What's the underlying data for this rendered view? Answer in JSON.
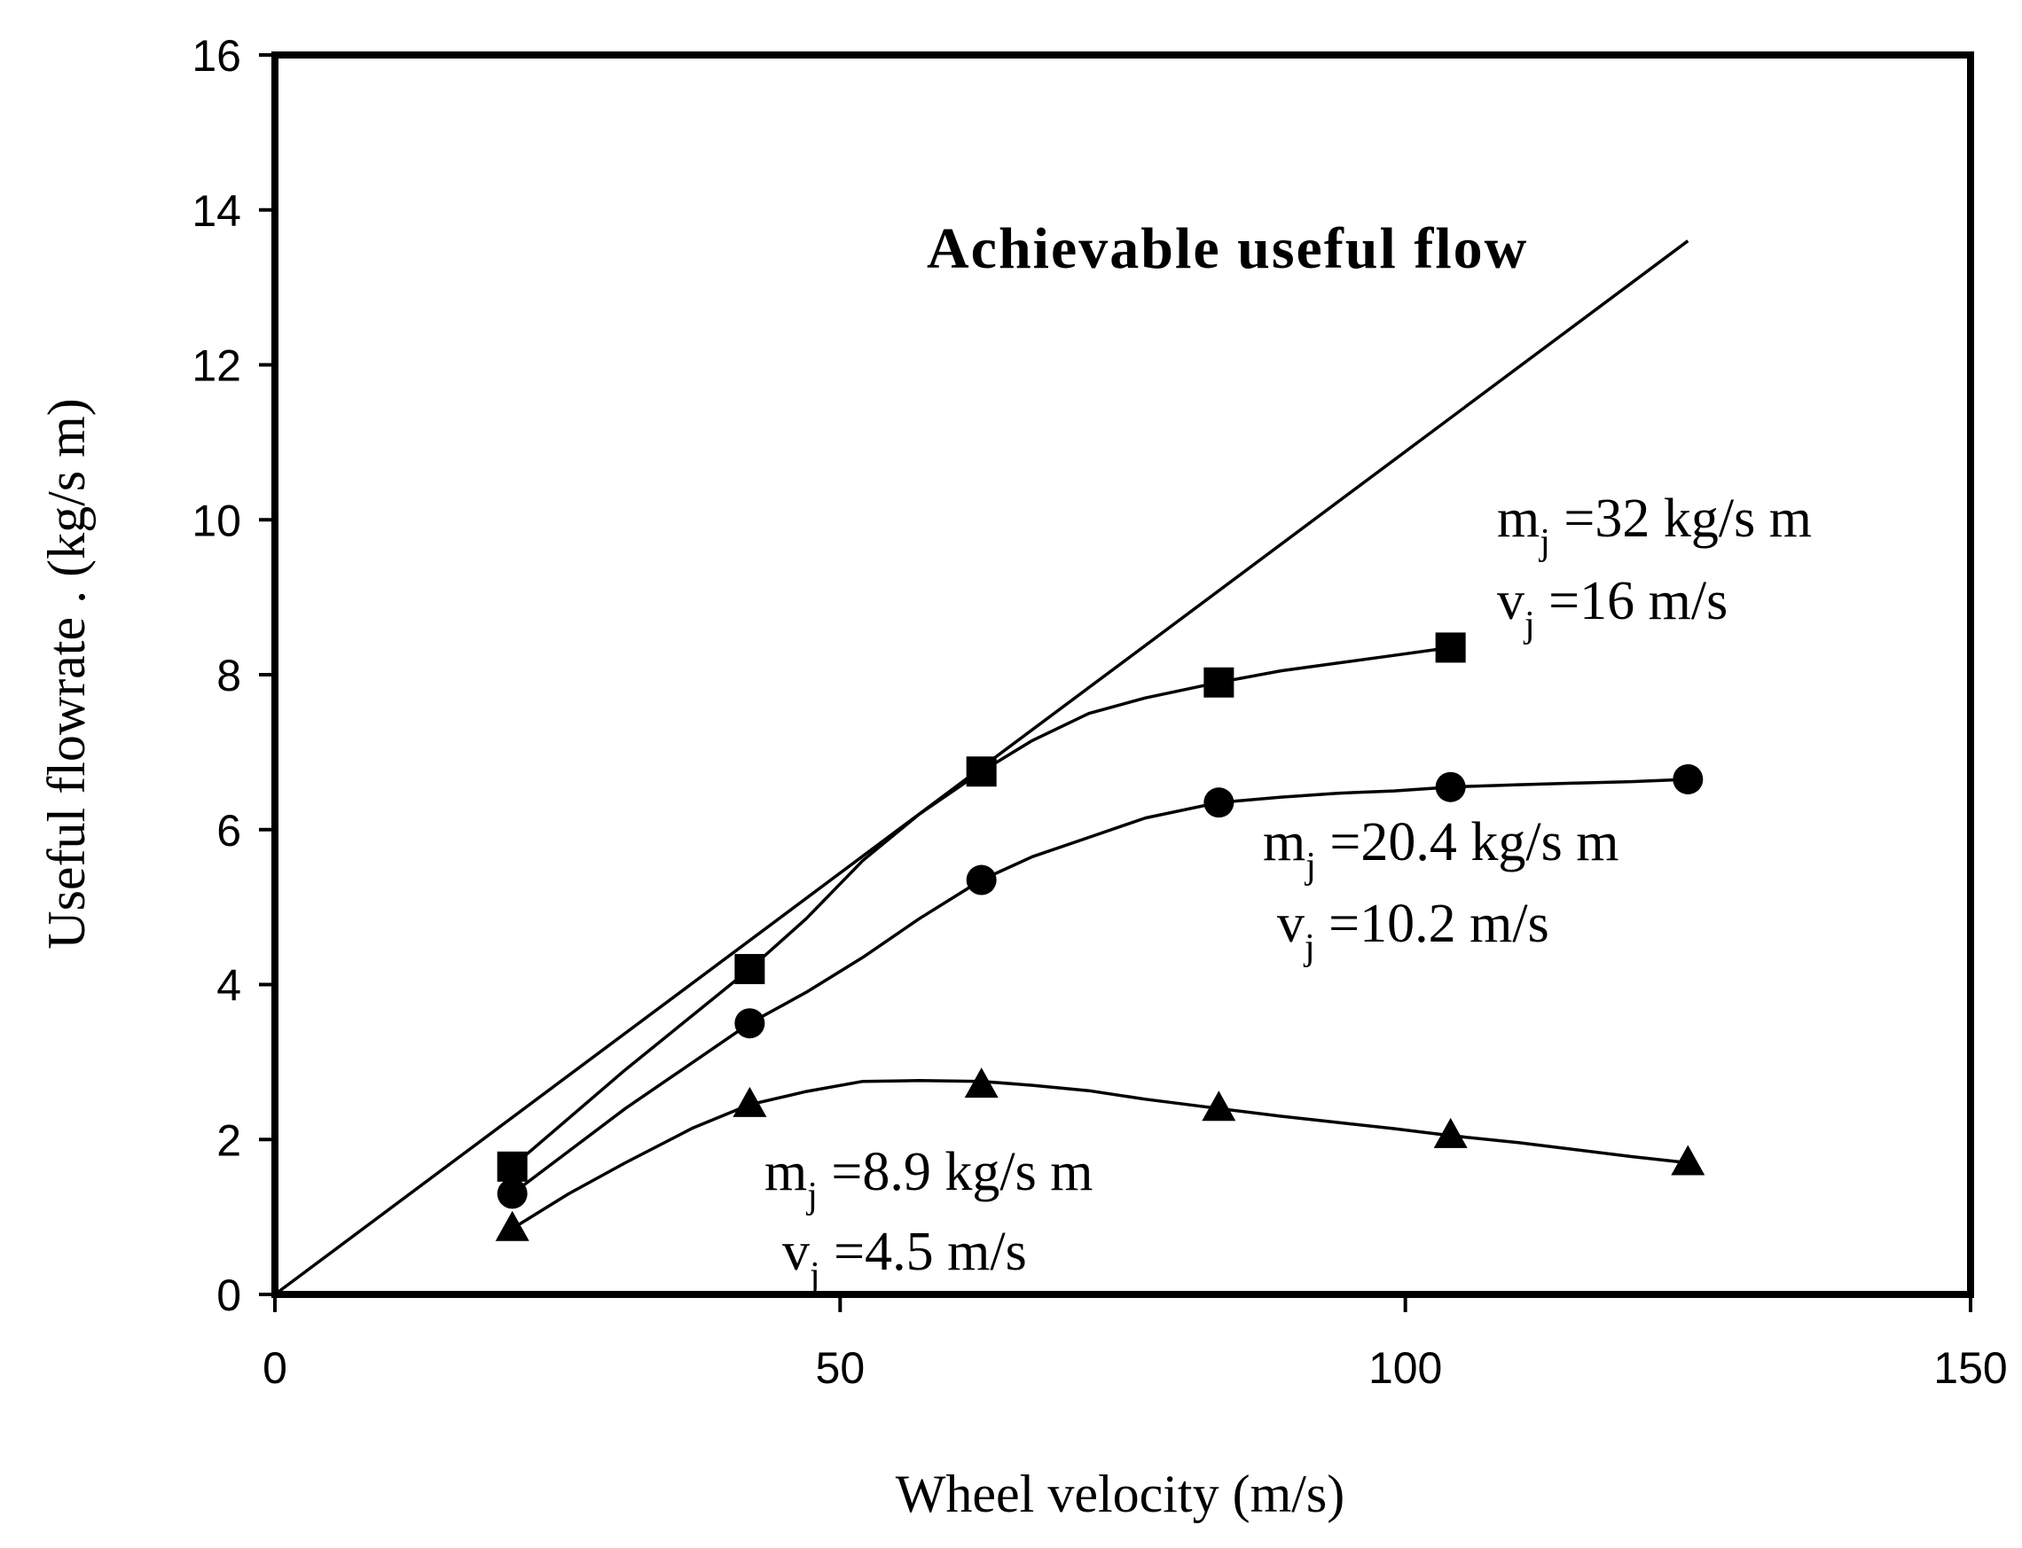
{
  "chart_data": {
    "type": "line",
    "title": "",
    "xlabel": "Wheel velocity  (m/s)",
    "ylabel": "Useful flowrate . (kg/s m)",
    "xlim": [
      0,
      150
    ],
    "ylim": [
      0,
      16
    ],
    "xticks": [
      0,
      50,
      100,
      150
    ],
    "yticks": [
      0,
      2,
      4,
      6,
      8,
      10,
      12,
      14,
      16
    ],
    "grid": false,
    "legend": "none",
    "series": [
      {
        "name": "Achievable useful flow",
        "marker": "none",
        "x": [
          0,
          125
        ],
        "y": [
          0,
          13.6
        ]
      },
      {
        "name": "mj=32 kg/s m, vj=16 m/s",
        "marker": "square",
        "x": [
          21,
          42,
          62.5,
          83.5,
          104
        ],
        "y": [
          1.65,
          4.2,
          6.75,
          7.9,
          8.35
        ],
        "curve_x": [
          21,
          31,
          42,
          47,
          52,
          57,
          62.5,
          67,
          72,
          77,
          83.5,
          89,
          94,
          99,
          104
        ],
        "curve_y": [
          1.65,
          2.9,
          4.2,
          4.85,
          5.6,
          6.2,
          6.75,
          7.15,
          7.5,
          7.7,
          7.9,
          8.05,
          8.15,
          8.25,
          8.35
        ]
      },
      {
        "name": "mj=20.4 kg/s m, vj=10.2 m/s",
        "marker": "circle",
        "x": [
          21,
          42,
          62.5,
          83.5,
          104,
          125
        ],
        "y": [
          1.3,
          3.5,
          5.35,
          6.35,
          6.55,
          6.65
        ],
        "curve_x": [
          21,
          26,
          31,
          37,
          42,
          47,
          52,
          57,
          62.5,
          67,
          72,
          77,
          83.5,
          89,
          94,
          99,
          104,
          110,
          115,
          120,
          125
        ],
        "curve_y": [
          1.3,
          1.85,
          2.4,
          3.0,
          3.5,
          3.9,
          4.35,
          4.85,
          5.35,
          5.65,
          5.9,
          6.15,
          6.35,
          6.42,
          6.47,
          6.5,
          6.55,
          6.58,
          6.6,
          6.62,
          6.65
        ]
      },
      {
        "name": "mj=8.9 kg/s m, vj=4.5 m/s",
        "marker": "triangle",
        "x": [
          21,
          42,
          62.5,
          83.5,
          104,
          125
        ],
        "y": [
          0.85,
          2.45,
          2.7,
          2.4,
          2.05,
          1.7
        ],
        "curve_x": [
          21,
          26,
          31,
          37,
          42,
          47,
          52,
          57,
          62.5,
          67,
          72,
          77,
          83.5,
          89,
          94,
          99,
          104,
          110,
          115,
          120,
          125
        ],
        "curve_y": [
          0.85,
          1.3,
          1.7,
          2.15,
          2.45,
          2.62,
          2.75,
          2.76,
          2.75,
          2.7,
          2.63,
          2.52,
          2.4,
          2.3,
          2.22,
          2.14,
          2.05,
          1.96,
          1.87,
          1.78,
          1.7
        ]
      }
    ],
    "annotations": [
      {
        "id": "achievable",
        "text": "Achievable useful flow"
      },
      {
        "id": "s32_m",
        "base": "m",
        "sub": "j",
        "rest": " =32 kg/s m"
      },
      {
        "id": "s32_v",
        "base": "v",
        "sub": "j",
        "rest": " =16 m/s"
      },
      {
        "id": "s20_m",
        "base": "m",
        "sub": "j",
        "rest": " =20.4 kg/s m"
      },
      {
        "id": "s20_v",
        "base": "v",
        "sub": "j",
        "rest": "  =10.2 m/s"
      },
      {
        "id": "s9_m",
        "base": "m",
        "sub": "j",
        "rest": " =8.9 kg/s m"
      },
      {
        "id": "s9_v",
        "base": "v",
        "sub": "j",
        "rest": "  =4.5 m/s"
      }
    ]
  }
}
